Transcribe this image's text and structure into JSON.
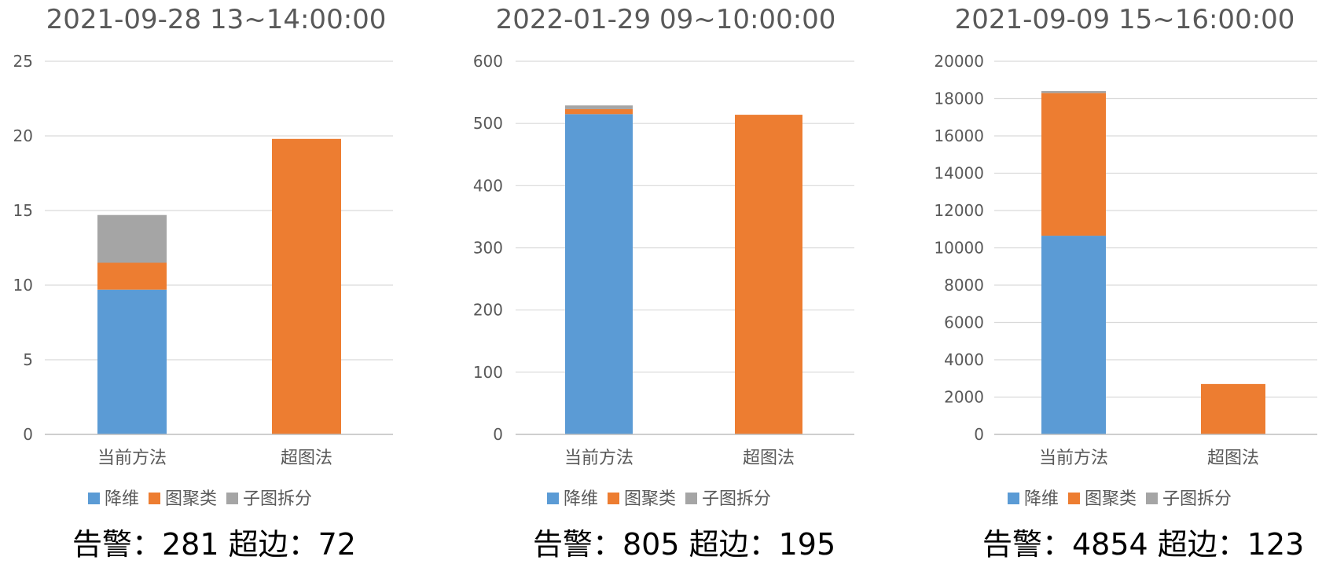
{
  "colors": {
    "降维": "#5b9bd5",
    "图聚类": "#ed7d31",
    "子图拆分": "#a5a5a5"
  },
  "chart_data": [
    {
      "type": "bar",
      "stacked": true,
      "title": "2021-09-28 13~14:00:00",
      "categories": [
        "当前方法",
        "超图法"
      ],
      "series": [
        {
          "name": "降维",
          "values": [
            9.7,
            0
          ]
        },
        {
          "name": "图聚类",
          "values": [
            1.8,
            19.8
          ]
        },
        {
          "name": "子图拆分",
          "values": [
            3.2,
            0
          ]
        }
      ],
      "ylim": [
        0,
        25
      ],
      "yticks": [
        0,
        5,
        10,
        15,
        20,
        25
      ],
      "legend": "bottom",
      "grid": true,
      "caption": "告警：281 超边：72"
    },
    {
      "type": "bar",
      "stacked": true,
      "title": "2022-01-29 09~10:00:00",
      "categories": [
        "当前方法",
        "超图法"
      ],
      "series": [
        {
          "name": "降维",
          "values": [
            515,
            0
          ]
        },
        {
          "name": "图聚类",
          "values": [
            8,
            514
          ]
        },
        {
          "name": "子图拆分",
          "values": [
            6,
            0
          ]
        }
      ],
      "ylim": [
        0,
        600
      ],
      "yticks": [
        0,
        100,
        200,
        300,
        400,
        500,
        600
      ],
      "legend": "bottom",
      "grid": true,
      "caption": "告警：805 超边：195"
    },
    {
      "type": "bar",
      "stacked": true,
      "title": "2021-09-09 15~16:00:00",
      "categories": [
        "当前方法",
        "超图法"
      ],
      "series": [
        {
          "name": "降维",
          "values": [
            10650,
            0
          ]
        },
        {
          "name": "图聚类",
          "values": [
            7650,
            2700
          ]
        },
        {
          "name": "子图拆分",
          "values": [
            100,
            0
          ]
        }
      ],
      "ylim": [
        0,
        20000
      ],
      "yticks": [
        0,
        2000,
        4000,
        6000,
        8000,
        10000,
        12000,
        14000,
        16000,
        18000,
        20000
      ],
      "legend": "bottom",
      "grid": true,
      "caption": "告警：4854 超边：123"
    }
  ]
}
